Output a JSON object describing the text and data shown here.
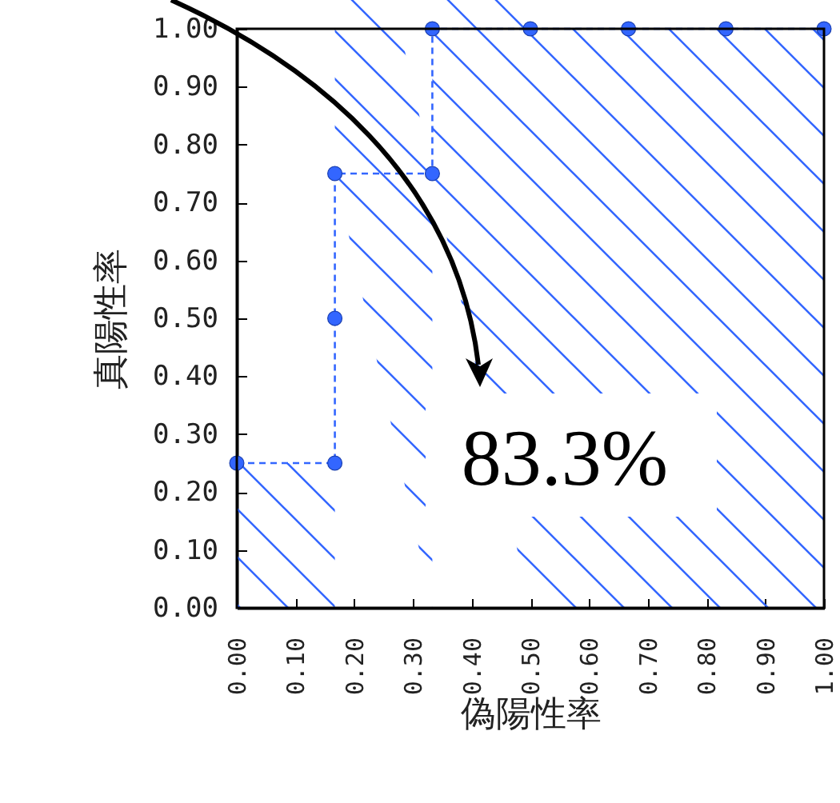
{
  "chart_data": {
    "type": "area",
    "xlabel": "偽陽性率",
    "ylabel": "真陽性率",
    "x": [
      0,
      0.167,
      0.167,
      0.167,
      0.333,
      0.333,
      0.5,
      0.667,
      0.833,
      1
    ],
    "series": [
      {
        "color": "#3366ff",
        "values": [
          0.25,
          0.25,
          0.5,
          0.75,
          0.75,
          1,
          1,
          1,
          1,
          1
        ]
      }
    ],
    "xlim": [
      0,
      1
    ],
    "ylim": [
      0,
      1
    ],
    "xticks": [
      {
        "value": 0,
        "label": "0.00"
      },
      {
        "value": 0.1,
        "label": "0.10"
      },
      {
        "value": 0.2,
        "label": "0.20"
      },
      {
        "value": 0.3,
        "label": "0.30"
      },
      {
        "value": 0.4,
        "label": "0.40"
      },
      {
        "value": 0.5,
        "label": "0.50"
      },
      {
        "value": 0.6,
        "label": "0.60"
      },
      {
        "value": 0.7,
        "label": "0.70"
      },
      {
        "value": 0.8,
        "label": "0.80"
      },
      {
        "value": 0.9,
        "label": "0.90"
      },
      {
        "value": 1,
        "label": "1.00"
      }
    ],
    "yticks": [
      {
        "value": 0,
        "label": "0.00"
      },
      {
        "value": 0.1,
        "label": "0.10"
      },
      {
        "value": 0.2,
        "label": "0.20"
      },
      {
        "value": 0.3,
        "label": "0.30"
      },
      {
        "value": 0.4,
        "label": "0.40"
      },
      {
        "value": 0.5,
        "label": "0.50"
      },
      {
        "value": 0.6,
        "label": "0.60"
      },
      {
        "value": 0.7,
        "label": "0.70"
      },
      {
        "value": 0.8,
        "label": "0.80"
      },
      {
        "value": 0.9,
        "label": "0.90"
      },
      {
        "value": 1,
        "label": "1.00"
      }
    ],
    "marker": "circle",
    "line_style": "dashed",
    "grid": false,
    "annotations": [
      "83.3%"
    ]
  }
}
